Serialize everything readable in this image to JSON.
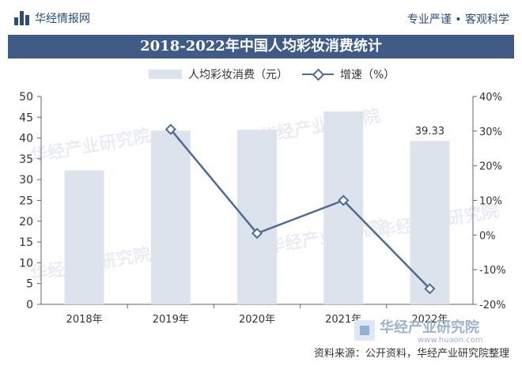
{
  "header": {
    "brand": "华经情报网",
    "tagline": "专业严谨 • 客观科学"
  },
  "chart_data": {
    "type": "bar",
    "title": "2018-2022年中国人均彩妆消费统计",
    "categories": [
      "2018年",
      "2019年",
      "2020年",
      "2021年",
      "2022年"
    ],
    "series": [
      {
        "name": "人均彩妆消费（元）",
        "type": "bar",
        "axis": "left",
        "values": [
          32.2,
          41.8,
          42.0,
          46.4,
          39.33
        ]
      },
      {
        "name": "增速（%）",
        "type": "line",
        "axis": "right",
        "values": [
          null,
          30.5,
          0.5,
          10.0,
          -15.5
        ]
      }
    ],
    "data_labels": [
      "39.33"
    ],
    "y_left": {
      "min": 0,
      "max": 50,
      "ticks": [
        "0",
        "5",
        "10",
        "15",
        "20",
        "25",
        "30",
        "35",
        "40",
        "45",
        "50"
      ]
    },
    "y_right": {
      "min": -20,
      "max": 40,
      "ticks": [
        "-20%",
        "-10%",
        "0%",
        "10%",
        "20%",
        "30%",
        "40%"
      ]
    },
    "legend_position": "top",
    "colors": {
      "bar": "#dde3ed",
      "line": "#4f6a93"
    }
  },
  "watermarks": [
    "华经产业研究院",
    "华经产业研究院",
    "华经产业研究院",
    "华经产业研究院",
    "华经产业研究院"
  ],
  "footer": {
    "logo_text": "华经产业研究院",
    "logo_url": "www.huaon.com",
    "source": "资料来源：公开资料，华经产业研究院整理"
  }
}
